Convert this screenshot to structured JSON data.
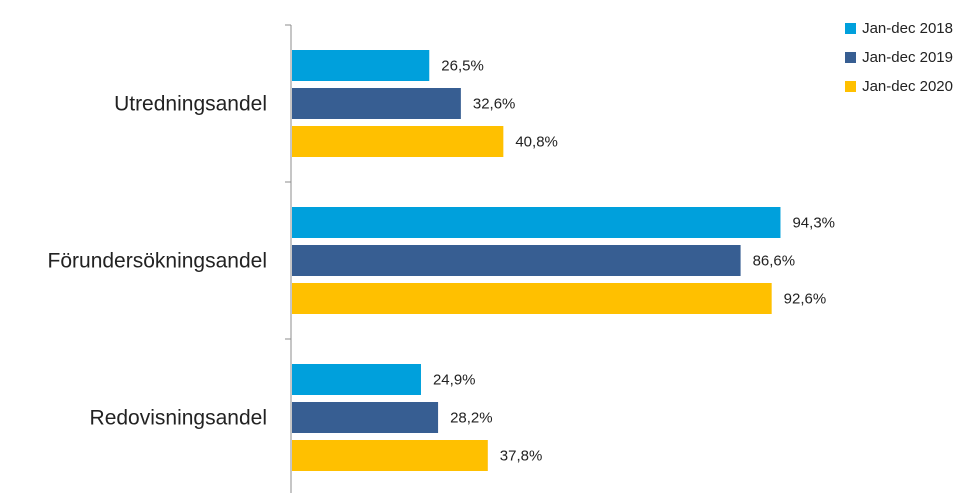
{
  "chart_data": {
    "type": "bar",
    "orientation": "horizontal",
    "categories": [
      "Utredningsandel",
      "Förundersökningsandel",
      "Redovisningsandel"
    ],
    "series": [
      {
        "name": "Jan-dec 2018",
        "color": "#00A0DC",
        "values": [
          26.5,
          94.3,
          24.9
        ],
        "labels": [
          "26,5%",
          "94,3%",
          "24,9%"
        ]
      },
      {
        "name": "Jan-dec 2019",
        "color": "#375E92",
        "values": [
          32.6,
          86.6,
          28.2
        ],
        "labels": [
          "32,6%",
          "86,6%",
          "28,2%"
        ]
      },
      {
        "name": "Jan-dec 2020",
        "color": "#FFC000",
        "values": [
          40.8,
          92.6,
          37.8
        ],
        "labels": [
          "40,8%",
          "92,6%",
          "37,8%"
        ]
      }
    ],
    "xlim": [
      0,
      100
    ],
    "grid": false,
    "legend_position": "top-right",
    "title": "",
    "xlabel": "",
    "ylabel": ""
  }
}
